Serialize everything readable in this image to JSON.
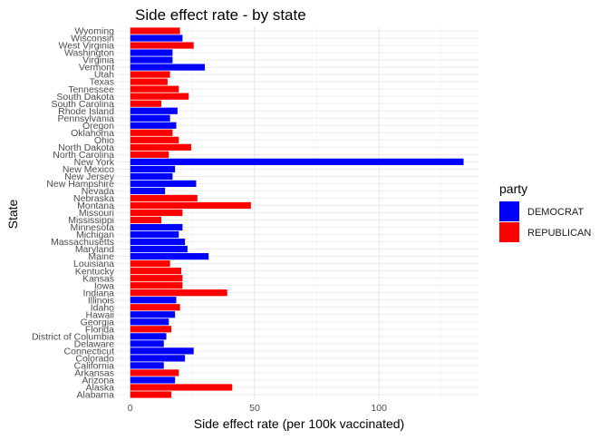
{
  "chart_data": {
    "type": "bar",
    "orientation": "horizontal",
    "title": "Side effect rate - by state",
    "xlabel": "Side effect rate (per 100k vaccinated)",
    "ylabel": "State",
    "xlim": [
      -5,
      140
    ],
    "xticks": [
      0,
      50,
      100
    ],
    "grid": true,
    "legend": {
      "title": "party",
      "position": "right",
      "entries": [
        {
          "label": "DEMOCRAT",
          "color": "#0000FF"
        },
        {
          "label": "REPUBLICAN",
          "color": "#FF0000"
        }
      ]
    },
    "categories": [
      "Alabama",
      "Alaska",
      "Arizona",
      "Arkansas",
      "California",
      "Colorado",
      "Connecticut",
      "Delaware",
      "District of Columbia",
      "Florida",
      "Georgia",
      "Hawaii",
      "Idaho",
      "Illinois",
      "Indiana",
      "Iowa",
      "Kansas",
      "Kentucky",
      "Louisiana",
      "Maine",
      "Maryland",
      "Massachusetts",
      "Michigan",
      "Minnesota",
      "Mississippi",
      "Missouri",
      "Montana",
      "Nebraska",
      "Nevada",
      "New Hampshire",
      "New Jersey",
      "New Mexico",
      "New York",
      "North Carolina",
      "North Dakota",
      "Ohio",
      "Oklahoma",
      "Oregon",
      "Pennsylvania",
      "Rhode Island",
      "South Carolina",
      "South Dakota",
      "Tennessee",
      "Texas",
      "Utah",
      "Vermont",
      "Virginia",
      "Washington",
      "West Virginia",
      "Wisconsin",
      "Wyoming"
    ],
    "values": [
      16.5,
      41,
      18,
      19.5,
      13.5,
      22,
      25.5,
      13.5,
      14.5,
      16.5,
      15.5,
      18,
      20,
      18.5,
      39,
      21,
      21,
      20.5,
      16,
      31.5,
      23,
      22,
      19.5,
      21,
      12.5,
      21,
      48.5,
      27,
      14,
      26.5,
      17,
      18,
      134,
      15.5,
      24.5,
      19.5,
      17,
      18.5,
      16,
      19,
      12.5,
      23.5,
      19.5,
      15,
      16,
      30,
      17,
      17,
      25.5,
      21,
      20
    ],
    "party": [
      "REPUBLICAN",
      "REPUBLICAN",
      "DEMOCRAT",
      "REPUBLICAN",
      "DEMOCRAT",
      "DEMOCRAT",
      "DEMOCRAT",
      "DEMOCRAT",
      "DEMOCRAT",
      "REPUBLICAN",
      "DEMOCRAT",
      "DEMOCRAT",
      "REPUBLICAN",
      "DEMOCRAT",
      "REPUBLICAN",
      "REPUBLICAN",
      "REPUBLICAN",
      "REPUBLICAN",
      "REPUBLICAN",
      "DEMOCRAT",
      "DEMOCRAT",
      "DEMOCRAT",
      "DEMOCRAT",
      "DEMOCRAT",
      "REPUBLICAN",
      "REPUBLICAN",
      "REPUBLICAN",
      "REPUBLICAN",
      "DEMOCRAT",
      "DEMOCRAT",
      "DEMOCRAT",
      "DEMOCRAT",
      "DEMOCRAT",
      "REPUBLICAN",
      "REPUBLICAN",
      "REPUBLICAN",
      "REPUBLICAN",
      "DEMOCRAT",
      "DEMOCRAT",
      "DEMOCRAT",
      "REPUBLICAN",
      "REPUBLICAN",
      "REPUBLICAN",
      "REPUBLICAN",
      "REPUBLICAN",
      "DEMOCRAT",
      "DEMOCRAT",
      "DEMOCRAT",
      "REPUBLICAN",
      "DEMOCRAT",
      "REPUBLICAN"
    ]
  }
}
